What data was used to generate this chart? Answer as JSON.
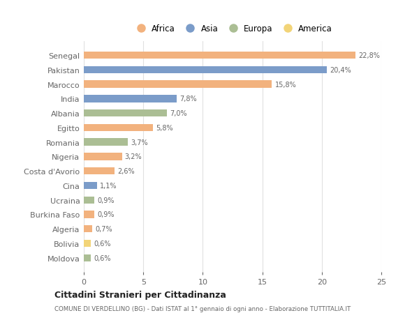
{
  "countries": [
    "Senegal",
    "Pakistan",
    "Marocco",
    "India",
    "Albania",
    "Egitto",
    "Romania",
    "Nigeria",
    "Costa d'Avorio",
    "Cina",
    "Ucraina",
    "Burkina Faso",
    "Algeria",
    "Bolivia",
    "Moldova"
  ],
  "values": [
    22.8,
    20.4,
    15.8,
    7.8,
    7.0,
    5.8,
    3.7,
    3.2,
    2.6,
    1.1,
    0.9,
    0.9,
    0.7,
    0.6,
    0.6
  ],
  "labels": [
    "22,8%",
    "20,4%",
    "15,8%",
    "7,8%",
    "7,0%",
    "5,8%",
    "3,7%",
    "3,2%",
    "2,6%",
    "1,1%",
    "0,9%",
    "0,9%",
    "0,7%",
    "0,6%",
    "0,6%"
  ],
  "continents": [
    "Africa",
    "Asia",
    "Africa",
    "Asia",
    "Europa",
    "Africa",
    "Europa",
    "Africa",
    "Africa",
    "Asia",
    "Europa",
    "Africa",
    "Africa",
    "America",
    "Europa"
  ],
  "colors": {
    "Africa": "#F2B27E",
    "Asia": "#7B9CC9",
    "Europa": "#ABBE94",
    "America": "#F2D478"
  },
  "legend_order": [
    "Africa",
    "Asia",
    "Europa",
    "America"
  ],
  "title": "Cittadini Stranieri per Cittadinanza",
  "subtitle": "COMUNE DI VERDELLINO (BG) - Dati ISTAT al 1° gennaio di ogni anno - Elaborazione TUTTITALIA.IT",
  "xlim": [
    0,
    25
  ],
  "xticks": [
    0,
    5,
    10,
    15,
    20,
    25
  ],
  "background_color": "#ffffff",
  "grid_color": "#e0e0e0"
}
